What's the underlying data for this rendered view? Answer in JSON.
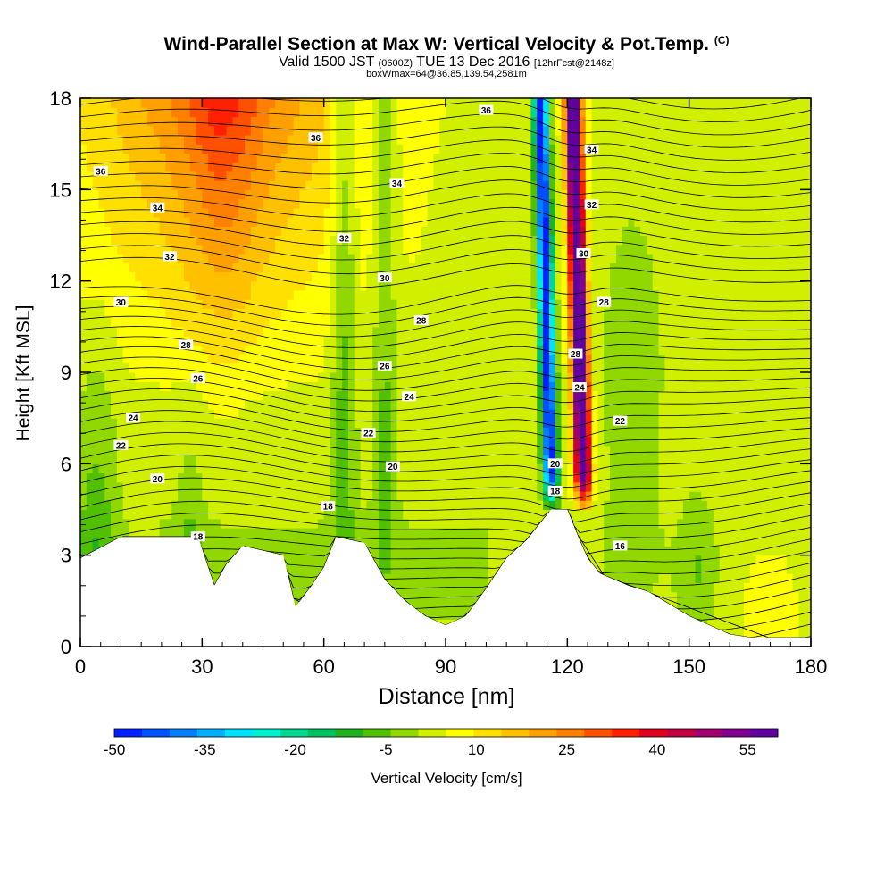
{
  "header": {
    "title": "Wind-Parallel Section at Max W: Vertical Velocity & Pot.Temp.",
    "copyright_mark": "(C)",
    "valid_prefix": "Valid 1500 JST",
    "valid_utc": "(0600Z)",
    "valid_date": "TUE 13 Dec 2016",
    "forecast": "[12hrFcst@2148z]",
    "box_info": "boxWmax=64@36.85,139.54,2581m"
  },
  "chart_data": {
    "type": "heatmap",
    "title": "Wind-Parallel Section at Max W: Vertical Velocity & Pot.Temp.",
    "xlabel": "Distance [nm]",
    "ylabel": "Height [Kft MSL]",
    "xlim": [
      0,
      180
    ],
    "ylim": [
      0,
      18
    ],
    "xticks": [
      "0",
      "30",
      "60",
      "90",
      "120",
      "150",
      "180"
    ],
    "yticks": [
      "0",
      "3",
      "6",
      "9",
      "12",
      "15",
      "18"
    ],
    "colorbar": {
      "label": "Vertical Velocity [cm/s]",
      "tick_labels": [
        "-50",
        "-35",
        "-20",
        "-5",
        "10",
        "25",
        "40",
        "55"
      ],
      "range": [
        -50,
        60
      ],
      "colors": [
        "#0020ff",
        "#0050ff",
        "#0080ff",
        "#00b0ff",
        "#00e0ff",
        "#00f0d0",
        "#00d890",
        "#00c060",
        "#20b020",
        "#50c000",
        "#90d800",
        "#d0f000",
        "#ffff00",
        "#ffe000",
        "#ffc000",
        "#ffa000",
        "#ff8000",
        "#ff5000",
        "#ff2000",
        "#e00020",
        "#c00040",
        "#a00070",
        "#800090",
        "#6000a0"
      ]
    },
    "velocity_features": [
      {
        "kind": "updraft",
        "x": 123,
        "value_cms": 64
      },
      {
        "kind": "downdraft",
        "x": 115,
        "value_cms": -50
      },
      {
        "kind": "updraft band",
        "x": 35,
        "value_cms": 30
      }
    ],
    "terrain_profile": {
      "x": [
        0,
        10,
        29,
        33,
        36,
        40,
        50,
        53,
        57,
        60,
        63,
        70,
        75,
        80,
        85,
        90,
        95,
        100,
        105,
        110,
        113,
        116,
        120,
        123,
        125,
        128,
        135,
        140,
        145,
        150,
        155,
        160,
        165,
        170,
        175,
        180
      ],
      "y": [
        2.9,
        3.6,
        3.6,
        2.0,
        2.7,
        3.3,
        3.0,
        1.3,
        2.0,
        2.6,
        3.6,
        3.4,
        2.2,
        1.5,
        1.0,
        0.7,
        1.0,
        1.9,
        2.9,
        3.5,
        4.0,
        4.5,
        4.5,
        3.5,
        2.9,
        2.4,
        2.0,
        1.8,
        1.4,
        1.0,
        0.7,
        0.4,
        0.3,
        0.3,
        0.3,
        0.3
      ]
    },
    "isentrope_labels": [
      {
        "text": "36",
        "x": 5,
        "y": 15.6
      },
      {
        "text": "36",
        "x": 58,
        "y": 16.7
      },
      {
        "text": "36",
        "x": 100,
        "y": 17.6
      },
      {
        "text": "34",
        "x": 19,
        "y": 14.4
      },
      {
        "text": "34",
        "x": 78,
        "y": 15.2
      },
      {
        "text": "34",
        "x": 126,
        "y": 16.3
      },
      {
        "text": "32",
        "x": 22,
        "y": 12.8
      },
      {
        "text": "32",
        "x": 65,
        "y": 13.4
      },
      {
        "text": "32",
        "x": 126,
        "y": 14.5
      },
      {
        "text": "30",
        "x": 10,
        "y": 11.3
      },
      {
        "text": "30",
        "x": 75,
        "y": 12.1
      },
      {
        "text": "30",
        "x": 124,
        "y": 12.9
      },
      {
        "text": "28",
        "x": 26,
        "y": 9.9
      },
      {
        "text": "28",
        "x": 84,
        "y": 10.7
      },
      {
        "text": "28",
        "x": 129,
        "y": 11.3
      },
      {
        "text": "28",
        "x": 122,
        "y": 9.6
      },
      {
        "text": "26",
        "x": 29,
        "y": 8.8
      },
      {
        "text": "26",
        "x": 75,
        "y": 9.2
      },
      {
        "text": "24",
        "x": 13,
        "y": 7.5
      },
      {
        "text": "24",
        "x": 81,
        "y": 8.2
      },
      {
        "text": "24",
        "x": 123,
        "y": 8.5
      },
      {
        "text": "22",
        "x": 10,
        "y": 6.6
      },
      {
        "text": "22",
        "x": 71,
        "y": 7.0
      },
      {
        "text": "22",
        "x": 133,
        "y": 7.4
      },
      {
        "text": "20",
        "x": 19,
        "y": 5.5
      },
      {
        "text": "20",
        "x": 77,
        "y": 5.9
      },
      {
        "text": "20",
        "x": 117,
        "y": 6.0
      },
      {
        "text": "18",
        "x": 61,
        "y": 4.6
      },
      {
        "text": "18",
        "x": 117,
        "y": 5.1
      },
      {
        "text": "18",
        "x": 29,
        "y": 3.6
      },
      {
        "text": "16",
        "x": 133,
        "y": 3.3
      }
    ],
    "isentrope_levels": [
      16,
      18,
      20,
      22,
      24,
      26,
      28,
      30,
      32,
      34,
      36
    ]
  }
}
